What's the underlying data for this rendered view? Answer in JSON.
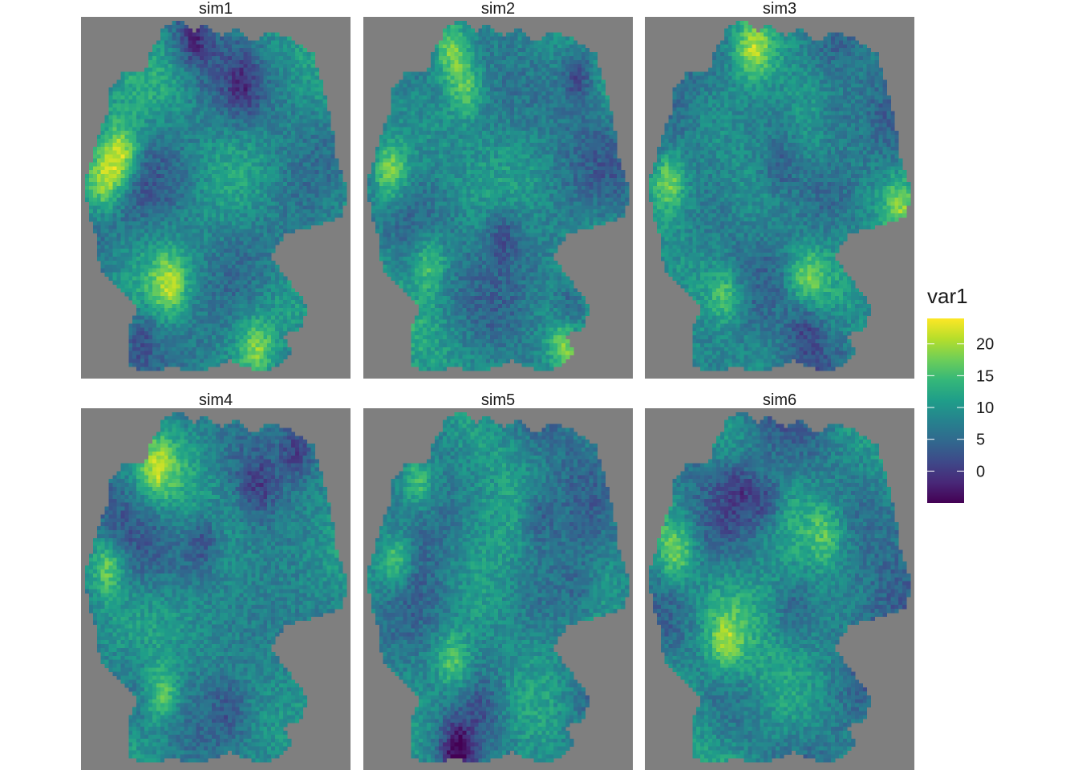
{
  "chart_data": {
    "type": "heatmap",
    "description_free": true,
    "panels": [
      {
        "title": "sim1",
        "hotspots": [
          [
            0.15,
            0.38,
            22
          ],
          [
            0.09,
            0.46,
            20
          ],
          [
            0.33,
            0.74,
            19
          ],
          [
            0.65,
            0.92,
            18
          ],
          [
            0.22,
            0.88,
            3
          ],
          [
            0.42,
            0.06,
            1
          ],
          [
            0.6,
            0.2,
            4
          ]
        ]
      },
      {
        "title": "sim2",
        "hotspots": [
          [
            0.33,
            0.09,
            19
          ],
          [
            0.1,
            0.43,
            20
          ],
          [
            0.38,
            0.2,
            17
          ],
          [
            0.25,
            0.68,
            17
          ],
          [
            0.75,
            0.92,
            19
          ],
          [
            0.8,
            0.16,
            1
          ],
          [
            0.52,
            0.6,
            3
          ],
          [
            0.77,
            0.8,
            3
          ]
        ]
      },
      {
        "title": "sim3",
        "hotspots": [
          [
            0.4,
            0.09,
            19
          ],
          [
            0.09,
            0.45,
            19
          ],
          [
            0.6,
            0.72,
            17
          ],
          [
            0.3,
            0.77,
            17
          ],
          [
            0.95,
            0.53,
            17
          ],
          [
            0.5,
            0.42,
            4
          ],
          [
            0.7,
            0.28,
            5
          ],
          [
            0.6,
            0.86,
            4
          ]
        ]
      },
      {
        "title": "sim4",
        "hotspots": [
          [
            0.28,
            0.17,
            17
          ],
          [
            0.1,
            0.44,
            19
          ],
          [
            0.3,
            0.79,
            19
          ],
          [
            0.45,
            0.37,
            3
          ],
          [
            0.66,
            0.22,
            4
          ],
          [
            0.8,
            0.12,
            2
          ],
          [
            0.55,
            0.83,
            5
          ]
        ]
      },
      {
        "title": "sim5",
        "hotspots": [
          [
            0.2,
            0.2,
            18
          ],
          [
            0.12,
            0.42,
            19
          ],
          [
            0.33,
            0.7,
            18
          ],
          [
            0.35,
            0.95,
            -3
          ],
          [
            0.45,
            0.84,
            6
          ],
          [
            0.65,
            0.3,
            4
          ],
          [
            0.8,
            0.5,
            6
          ]
        ]
      },
      {
        "title": "sim6",
        "hotspots": [
          [
            0.12,
            0.4,
            17
          ],
          [
            0.3,
            0.65,
            17
          ],
          [
            0.67,
            0.35,
            15
          ],
          [
            0.35,
            0.22,
            4
          ],
          [
            0.45,
            0.26,
            3
          ],
          [
            0.55,
            0.55,
            6
          ],
          [
            0.85,
            0.73,
            5
          ]
        ]
      }
    ],
    "legend": {
      "title": "var1",
      "ticks": [
        0,
        5,
        10,
        15,
        20
      ],
      "tick_labels": [
        "0",
        "5",
        "10",
        "15",
        "20"
      ],
      "range": [
        -5,
        24
      ],
      "colormap": "viridis",
      "position": "right"
    },
    "panel_background": "#7f7f7f",
    "colormap_stops": [
      "#440154",
      "#482878",
      "#3e4989",
      "#31688e",
      "#26828e",
      "#1f9e89",
      "#35b779",
      "#6ece58",
      "#b5de2b",
      "#fde725"
    ]
  }
}
